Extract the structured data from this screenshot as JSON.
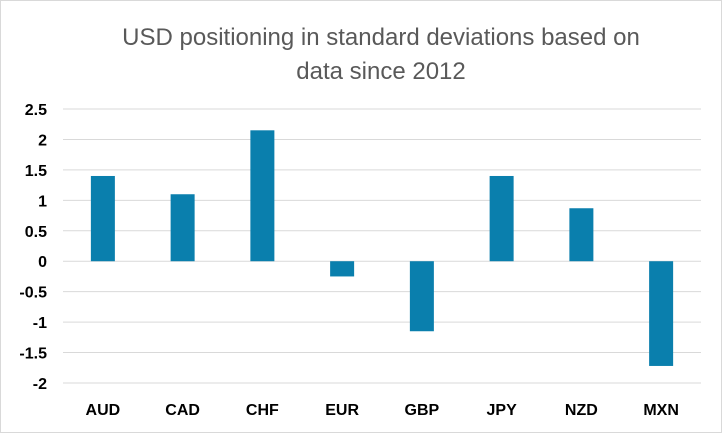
{
  "chart_data": {
    "type": "bar",
    "title_lines": [
      "USD positioning in standard deviations based on",
      "data since 2012"
    ],
    "categories": [
      "AUD",
      "CAD",
      "CHF",
      "EUR",
      "GBP",
      "JPY",
      "NZD",
      "MXN"
    ],
    "values": [
      1.4,
      1.1,
      2.15,
      -0.25,
      -1.15,
      1.4,
      0.87,
      -1.72
    ],
    "ylim": [
      -2,
      2.5
    ],
    "yticks": [
      "2.5",
      "2",
      "1.5",
      "1",
      "0.5",
      "0",
      "-0.5",
      "-1",
      "-1.5",
      "-2"
    ],
    "ytick_values": [
      2.5,
      2,
      1.5,
      1,
      0.5,
      0,
      -0.5,
      -1,
      -1.5,
      -2
    ],
    "grid": true,
    "legend": "none"
  },
  "colors": {
    "bar": "#0a7fad",
    "grid": "#d9d9d9",
    "title": "#595959"
  }
}
